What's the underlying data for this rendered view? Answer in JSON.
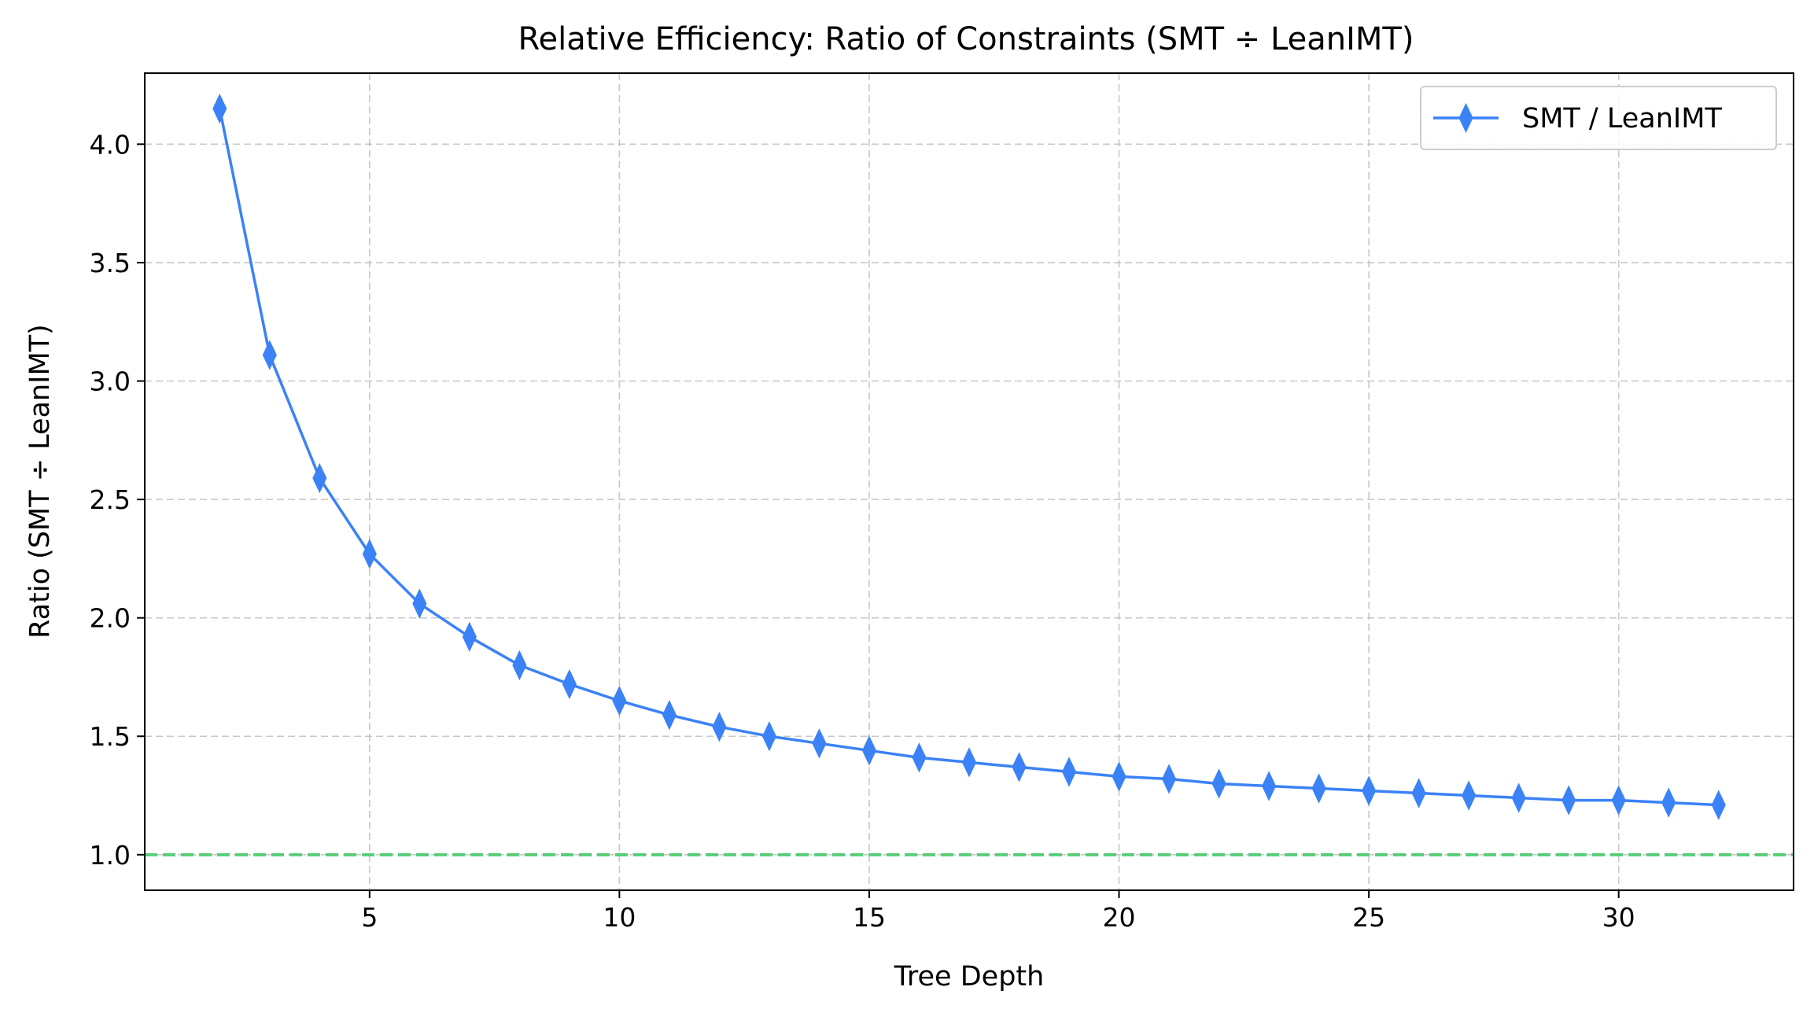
{
  "chart_data": {
    "type": "line",
    "title": "Relative Efficiency: Ratio of Constraints (SMT ÷ LeanIMT)",
    "xlabel": "Tree Depth",
    "ylabel": "Ratio (SMT ÷ LeanIMT)",
    "xlim": [
      0.5,
      33.5
    ],
    "ylim": [
      0.85,
      4.3
    ],
    "xticks": [
      5,
      10,
      15,
      20,
      25,
      30
    ],
    "yticks": [
      1.0,
      1.5,
      2.0,
      2.5,
      3.0,
      3.5,
      4.0
    ],
    "xtick_labels": [
      "5",
      "10",
      "15",
      "20",
      "25",
      "30"
    ],
    "ytick_labels": [
      "1.0",
      "1.5",
      "2.0",
      "2.5",
      "3.0",
      "3.5",
      "4.0"
    ],
    "grid": true,
    "legend_position": "top-right",
    "x": [
      2,
      3,
      4,
      5,
      6,
      7,
      8,
      9,
      10,
      11,
      12,
      13,
      14,
      15,
      16,
      17,
      18,
      19,
      20,
      21,
      22,
      23,
      24,
      25,
      26,
      27,
      28,
      29,
      30,
      31,
      32
    ],
    "series": [
      {
        "name": "SMT / LeanIMT",
        "color": "#3b82f6",
        "marker": "thin-diamond",
        "values": [
          4.15,
          3.11,
          2.59,
          2.27,
          2.06,
          1.92,
          1.8,
          1.72,
          1.65,
          1.59,
          1.54,
          1.5,
          1.47,
          1.44,
          1.41,
          1.39,
          1.37,
          1.35,
          1.33,
          1.32,
          1.3,
          1.29,
          1.28,
          1.27,
          1.26,
          1.25,
          1.24,
          1.23,
          1.23,
          1.22,
          1.21
        ]
      }
    ],
    "reference_line": {
      "y": 1.0,
      "color": "#4ecb71",
      "style": "dashed"
    }
  }
}
